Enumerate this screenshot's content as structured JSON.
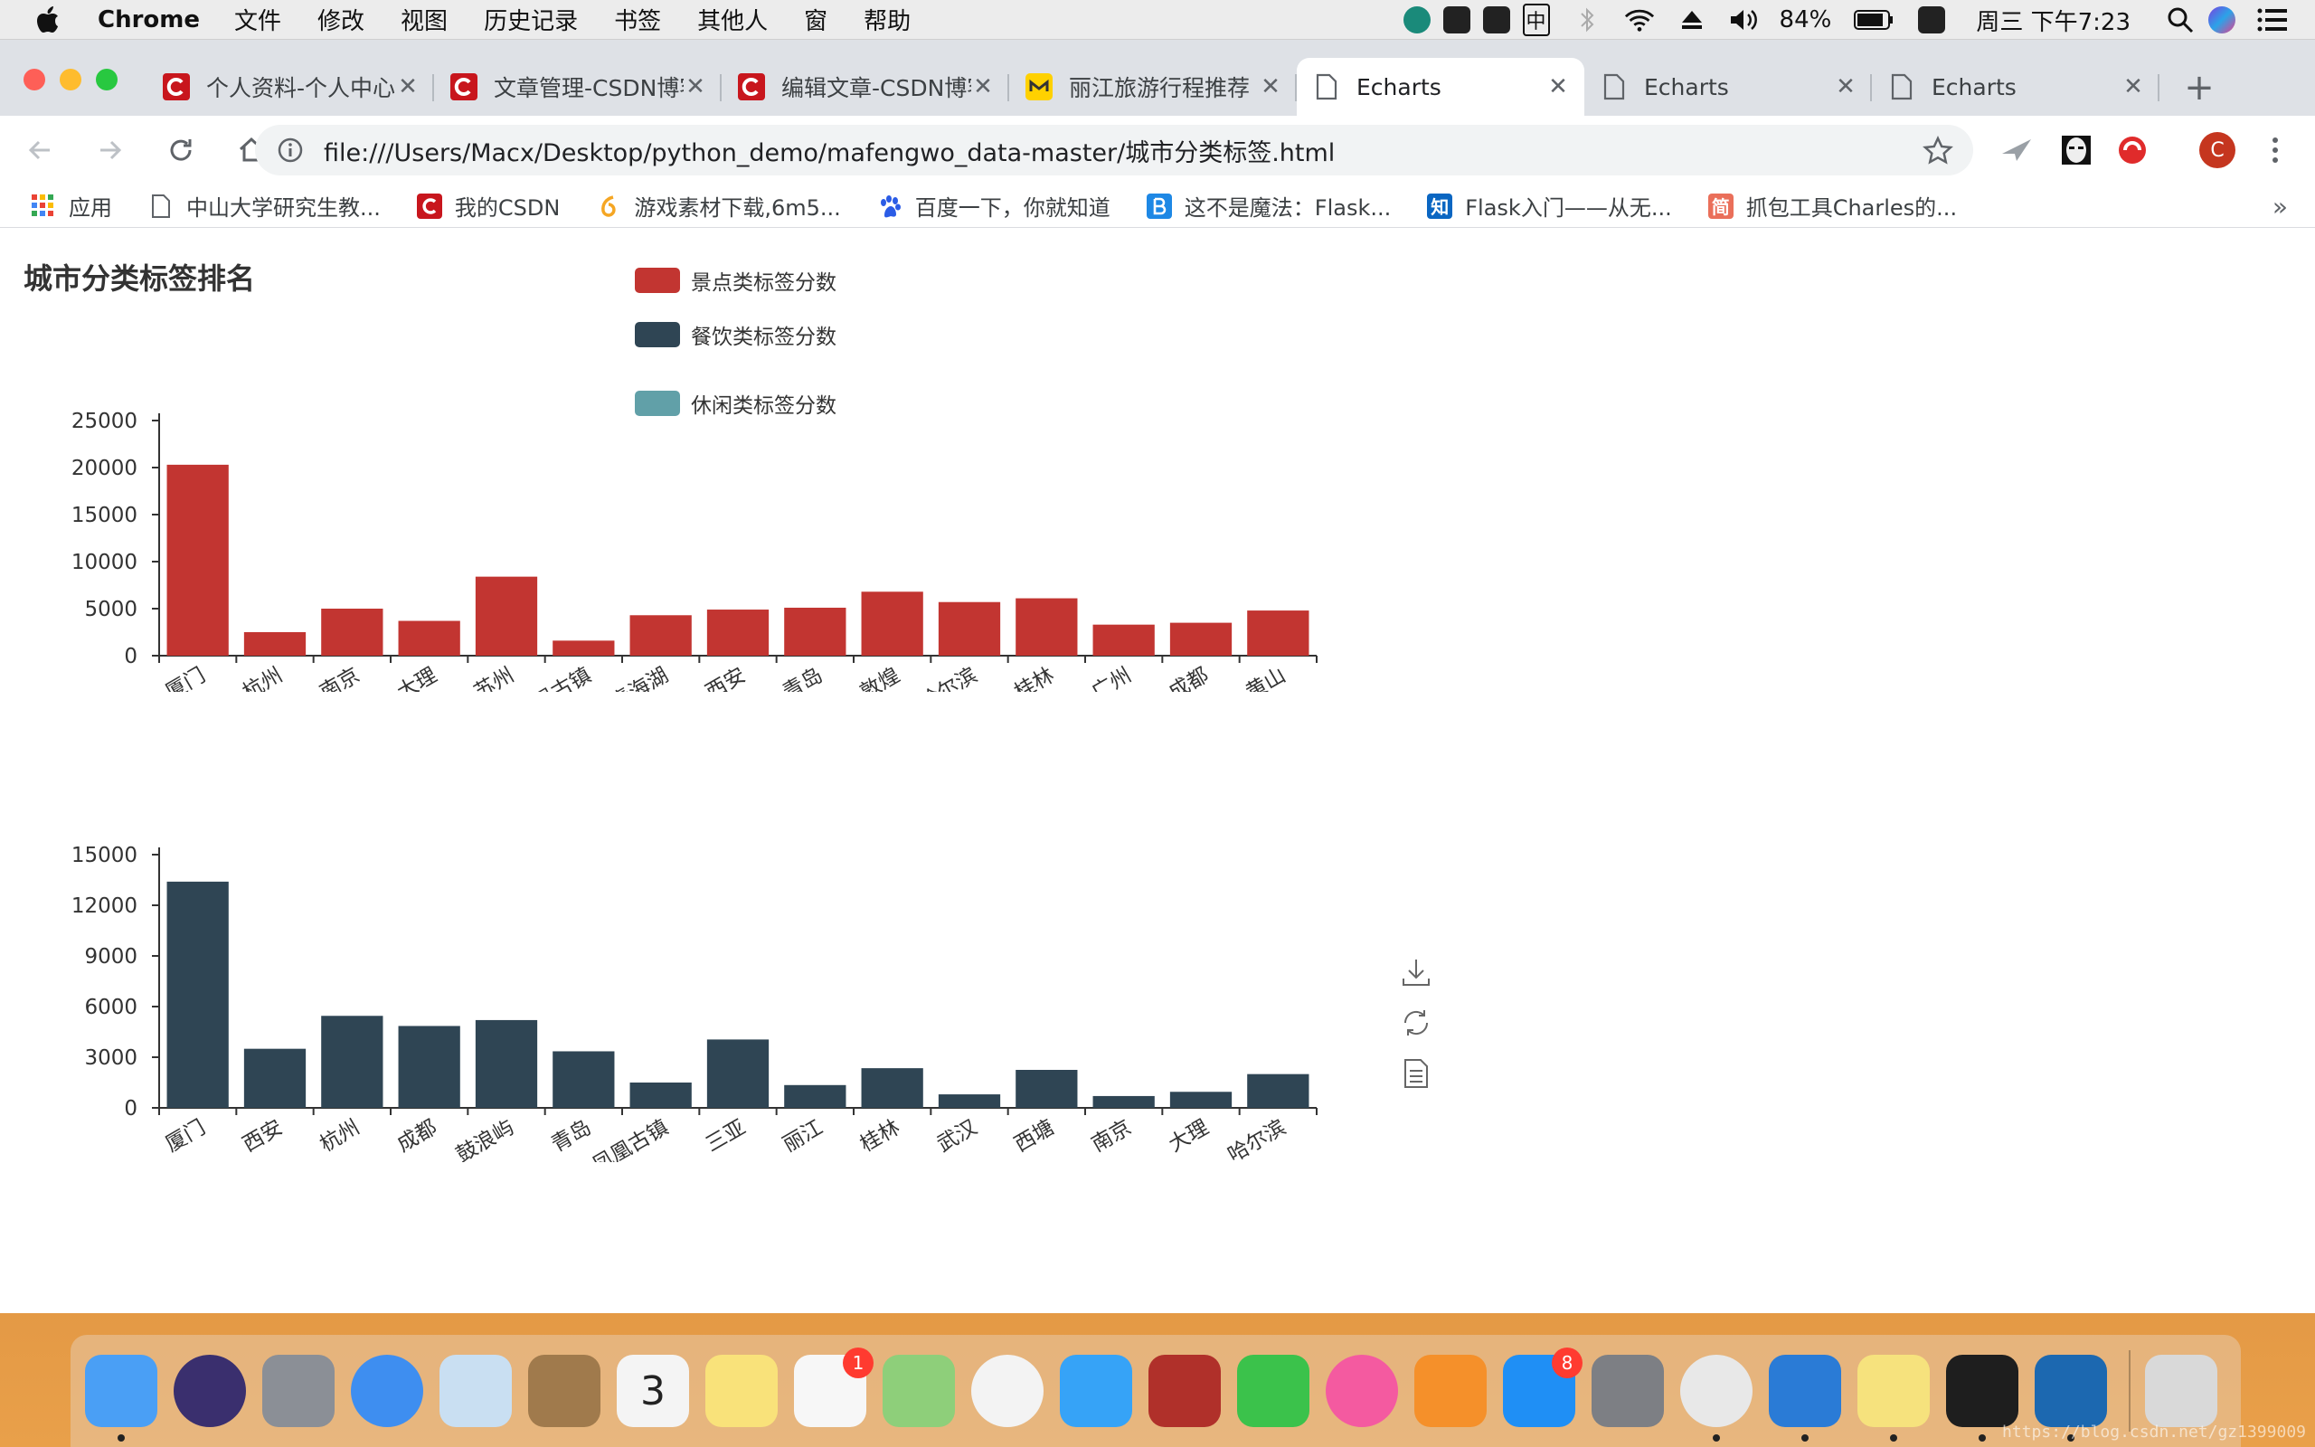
{
  "menubar": {
    "app": "Chrome",
    "items": [
      "文件",
      "修改",
      "视图",
      "历史记录",
      "书签",
      "其他人",
      "窗",
      "帮助"
    ],
    "battery": "84%",
    "clock": "周三 下午7:23",
    "ime": "中"
  },
  "tabs": [
    {
      "title": "个人资料-个人中心",
      "icon": "csdn-icon",
      "color": "#c8161d"
    },
    {
      "title": "文章管理-CSDN博客",
      "icon": "csdn-icon",
      "color": "#c8161d"
    },
    {
      "title": "编辑文章-CSDN博客",
      "icon": "csdn-icon",
      "color": "#c8161d"
    },
    {
      "title": "丽江旅游行程推荐",
      "icon": "mafengwo-icon",
      "color": "#ffd100"
    },
    {
      "title": "Echarts",
      "icon": "page-icon",
      "active": true
    },
    {
      "title": "Echarts",
      "icon": "page-icon"
    },
    {
      "title": "Echarts",
      "icon": "page-icon"
    }
  ],
  "address": {
    "url": "file:///Users/Macx/Desktop/python_demo/mafengwo_data-master/城市分类标签.html"
  },
  "profile_initial": "C",
  "bookmarks": [
    {
      "label": "应用",
      "icon": "apps-grid-icon"
    },
    {
      "label": "中山大学研究生教...",
      "icon": "page-icon"
    },
    {
      "label": "我的CSDN",
      "icon": "csdn-icon"
    },
    {
      "label": "游戏素材下载,6m5...",
      "icon": "six-icon"
    },
    {
      "label": "百度一下，你就知道",
      "icon": "baidu-paw-icon"
    },
    {
      "label": "这不是魔法：Flask...",
      "icon": "blog-b-icon"
    },
    {
      "label": "Flask入门——从无...",
      "icon": "zhihu-icon"
    },
    {
      "label": "抓包工具Charles的...",
      "icon": "jianshu-icon"
    }
  ],
  "bookmarks_more": "»",
  "page": {
    "title": "城市分类标签排名",
    "legend": [
      {
        "name": "景点类标签分数",
        "color": "#c23531"
      },
      {
        "name": "餐饮类标签分数",
        "color": "#2f4554"
      },
      {
        "name": "休闲类标签分数",
        "color": "#61a0a8"
      }
    ]
  },
  "chart_data": [
    {
      "type": "bar",
      "series": [
        {
          "name": "景点类标签分数",
          "color": "#c23531",
          "values": [
            20300,
            2500,
            5000,
            3700,
            8400,
            1600,
            4300,
            4900,
            5100,
            6800,
            5700,
            6100,
            3300,
            3500,
            4800
          ]
        }
      ],
      "categories": [
        "厦门",
        "杭州",
        "南京",
        "大理",
        "苏州",
        "凤凰古镇",
        "青海湖",
        "西安",
        "青岛",
        "敦煌",
        "哈尔滨",
        "桂林",
        "广州",
        "成都",
        "黄山"
      ],
      "yticks": [
        "0",
        "5000",
        "10000",
        "15000",
        "20000",
        "25000"
      ],
      "ylim": [
        0,
        25000
      ]
    },
    {
      "type": "bar",
      "series": [
        {
          "name": "餐饮类标签分数",
          "color": "#2f4554",
          "values": [
            13400,
            3500,
            5450,
            4850,
            5200,
            3350,
            1500,
            4050,
            1350,
            2350,
            800,
            2250,
            700,
            950,
            2000
          ]
        }
      ],
      "categories": [
        "厦门",
        "西安",
        "杭州",
        "成都",
        "鼓浪屿",
        "青岛",
        "凤凰古镇",
        "三亚",
        "丽江",
        "桂林",
        "武汉",
        "西塘",
        "南京",
        "大理",
        "哈尔滨"
      ],
      "yticks": [
        "0",
        "3000",
        "6000",
        "9000",
        "12000",
        "15000"
      ],
      "ylim": [
        0,
        15000
      ]
    }
  ],
  "toolbox": [
    "save-as-image-icon",
    "restore-icon",
    "data-view-icon"
  ],
  "dock": [
    {
      "name": "finder",
      "color": "#4a9ff5",
      "dot": true
    },
    {
      "name": "siri",
      "color": "#3a2f6e"
    },
    {
      "name": "launchpad",
      "color": "#8b8f96"
    },
    {
      "name": "safari",
      "color": "#3e8ef0"
    },
    {
      "name": "mail",
      "color": "#c9dff2"
    },
    {
      "name": "contacts",
      "color": "#a07a4c"
    },
    {
      "name": "calendar",
      "color": "#f4f4f4",
      "text": "3"
    },
    {
      "name": "notes",
      "color": "#f9e27a"
    },
    {
      "name": "reminders",
      "color": "#f7f7f7",
      "badge": "1"
    },
    {
      "name": "maps",
      "color": "#8ecf7a"
    },
    {
      "name": "photos",
      "color": "#f3f3f3"
    },
    {
      "name": "messages",
      "color": "#36a3f7"
    },
    {
      "name": "photo-booth",
      "color": "#b0302a"
    },
    {
      "name": "facetime",
      "color": "#3bc24b"
    },
    {
      "name": "itunes",
      "color": "#f45aa0"
    },
    {
      "name": "ibooks",
      "color": "#f5902a"
    },
    {
      "name": "app-store",
      "color": "#1f8ff5",
      "badge": "8"
    },
    {
      "name": "system-preferences",
      "color": "#7d7f84"
    },
    {
      "name": "chrome",
      "color": "#e8e8e8",
      "dot": true
    },
    {
      "name": "xcode",
      "color": "#2a7bd6",
      "dot": true
    },
    {
      "name": "stickies",
      "color": "#f6e27d",
      "dot": true
    },
    {
      "name": "terminal",
      "color": "#1e1e1e",
      "dot": true
    },
    {
      "name": "vscode",
      "color": "#1c68b0",
      "dot": true
    },
    {
      "name": "trash",
      "color": "#d9d9d9"
    }
  ],
  "watermark": "https://blog.csdn.net/gz1399009"
}
